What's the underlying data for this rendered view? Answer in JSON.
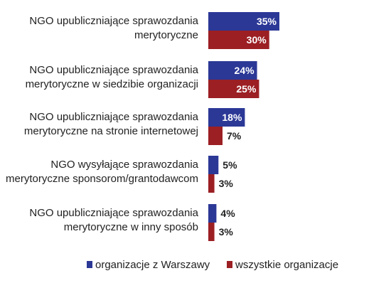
{
  "chart_data": {
    "type": "bar",
    "orientation": "horizontal",
    "categories": [
      [
        "NGO upubliczniające sprawozdania",
        "merytoryczne"
      ],
      [
        "NGO upubliczniające sprawozdania",
        "merytoryczne w siedzibie organizacji"
      ],
      [
        "NGO upubliczniające sprawozdania",
        "merytoryczne na stronie internetowej"
      ],
      [
        "NGO wysyłające sprawozdania",
        "merytoryczne sponsorom/grantodawcom"
      ],
      [
        "NGO upubliczniające sprawozdania",
        "merytoryczne w inny sposób"
      ]
    ],
    "series": [
      {
        "name": "organizacje z Warszawy",
        "color": "#2b3896",
        "values": [
          35,
          24,
          18,
          5,
          4
        ]
      },
      {
        "name": "wszystkie organizacje",
        "color": "#9b1f23",
        "values": [
          30,
          25,
          7,
          3,
          3
        ]
      }
    ],
    "value_suffix": "%",
    "xlim": [
      0,
      35
    ],
    "legend_position": "bottom",
    "grid": false
  }
}
